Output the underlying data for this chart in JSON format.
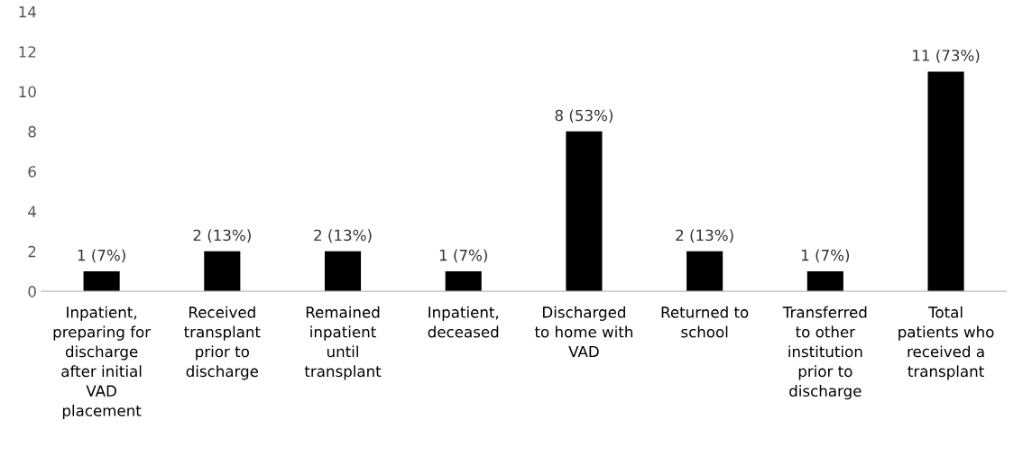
{
  "chart_data": {
    "type": "bar",
    "categories": [
      "Inpatient,\npreparing for\ndischarge\nafter initial\nVAD\nplacement",
      "Received\ntransplant\nprior to\ndischarge",
      "Remained\ninpatient\nuntil\ntransplant",
      "Inpatient,\ndeceased",
      "Discharged\nto home with\nVAD",
      "Returned to\nschool",
      "Transferred\nto other\ninstitution\nprior to\ndischarge",
      "Total\npatients who\nreceived a\ntransplant"
    ],
    "values": [
      1,
      2,
      2,
      1,
      8,
      2,
      1,
      11
    ],
    "value_labels": [
      "1 (7%)",
      "2 (13%)",
      "2 (13%)",
      "1 (7%)",
      "8 (53%)",
      "2 (13%)",
      "1 (7%)",
      "11 (73%)"
    ],
    "color": "#000000",
    "ylim": [
      0,
      14
    ],
    "yticks": [
      0,
      2,
      4,
      6,
      8,
      10,
      12,
      14
    ],
    "grid": false
  }
}
